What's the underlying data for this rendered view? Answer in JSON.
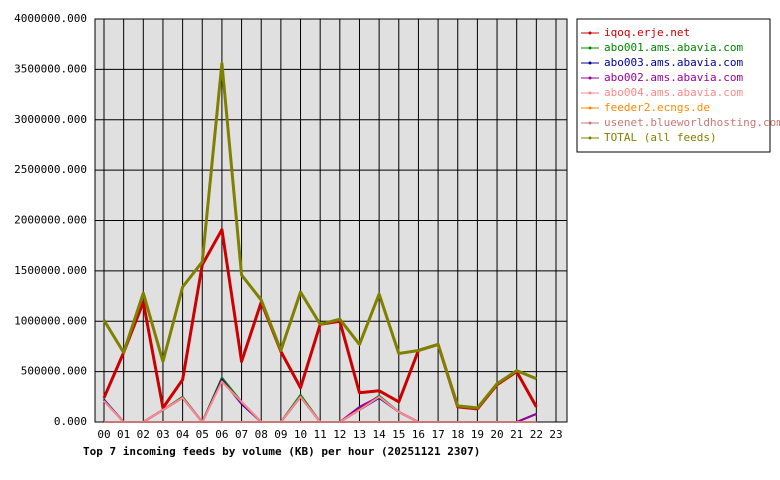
{
  "chart_data": {
    "type": "line",
    "title": "Top 7 incoming feeds by volume (KB) per hour (20251121 2307)",
    "categories": [
      "00",
      "01",
      "02",
      "03",
      "04",
      "05",
      "06",
      "07",
      "08",
      "09",
      "10",
      "11",
      "12",
      "13",
      "14",
      "15",
      "16",
      "17",
      "18",
      "19",
      "20",
      "21",
      "22",
      "23"
    ],
    "ylim": [
      0,
      4000000
    ],
    "yticks": [
      {
        "value": 0,
        "label": "0.000"
      },
      {
        "value": 500000,
        "label": "500000.000"
      },
      {
        "value": 1000000,
        "label": "1000000.000"
      },
      {
        "value": 1500000,
        "label": "1500000.000"
      },
      {
        "value": 2000000,
        "label": "2000000.000"
      },
      {
        "value": 2500000,
        "label": "2500000.000"
      },
      {
        "value": 3000000,
        "label": "3000000.000"
      },
      {
        "value": 3500000,
        "label": "3500000.000"
      },
      {
        "value": 4000000,
        "label": "4000000.000"
      }
    ],
    "grid": true,
    "legend": "right",
    "series": [
      {
        "name": "iqoq.erje.net",
        "color": "#cc0000",
        "values": [
          240000,
          690000,
          1190000,
          140000,
          420000,
          1560000,
          1910000,
          600000,
          1190000,
          700000,
          340000,
          970000,
          1000000,
          290000,
          310000,
          200000,
          710000,
          770000,
          150000,
          130000,
          370000,
          500000,
          150000,
          null
        ]
      },
      {
        "name": "abo001.ams.abavia.com",
        "color": "#008800",
        "values": [
          220000,
          0,
          0,
          120000,
          250000,
          0,
          440000,
          200000,
          0,
          0,
          270000,
          0,
          0,
          130000,
          260000,
          100000,
          0,
          0,
          0,
          0,
          0,
          0,
          0,
          null
        ]
      },
      {
        "name": "abo003.ams.abavia.com",
        "color": "#000099",
        "values": [
          220000,
          0,
          0,
          120000,
          240000,
          0,
          420000,
          180000,
          0,
          0,
          250000,
          0,
          0,
          120000,
          240000,
          100000,
          0,
          0,
          0,
          0,
          0,
          0,
          80000,
          null
        ]
      },
      {
        "name": "abo002.ams.abavia.com",
        "color": "#990099",
        "values": [
          210000,
          0,
          0,
          120000,
          240000,
          0,
          410000,
          190000,
          0,
          0,
          250000,
          0,
          0,
          150000,
          250000,
          100000,
          0,
          0,
          0,
          0,
          0,
          0,
          80000,
          null
        ]
      },
      {
        "name": "abo004.ams.abavia.com",
        "color": "#ff8888",
        "values": [
          210000,
          0,
          0,
          120000,
          240000,
          0,
          400000,
          200000,
          0,
          0,
          250000,
          0,
          0,
          120000,
          250000,
          100000,
          0,
          0,
          0,
          0,
          0,
          0,
          0,
          null
        ]
      },
      {
        "name": "feeder2.ecngs.de",
        "color": "#ff8800",
        "values": [
          0,
          0,
          0,
          0,
          0,
          0,
          0,
          0,
          0,
          0,
          0,
          0,
          0,
          0,
          0,
          0,
          0,
          0,
          0,
          0,
          0,
          0,
          0,
          null
        ]
      },
      {
        "name": "usenet.blueworldhosting.com",
        "color": "#cc7777",
        "values": [
          0,
          0,
          0,
          0,
          0,
          0,
          0,
          0,
          0,
          0,
          0,
          0,
          0,
          0,
          0,
          0,
          0,
          0,
          0,
          0,
          0,
          0,
          0,
          null
        ]
      },
      {
        "name": "TOTAL (all feeds)",
        "color": "#808000",
        "values": [
          1010000,
          690000,
          1280000,
          600000,
          1340000,
          1590000,
          3560000,
          1460000,
          1210000,
          710000,
          1290000,
          970000,
          1020000,
          770000,
          1270000,
          680000,
          710000,
          770000,
          160000,
          140000,
          380000,
          510000,
          430000,
          null
        ]
      }
    ]
  }
}
